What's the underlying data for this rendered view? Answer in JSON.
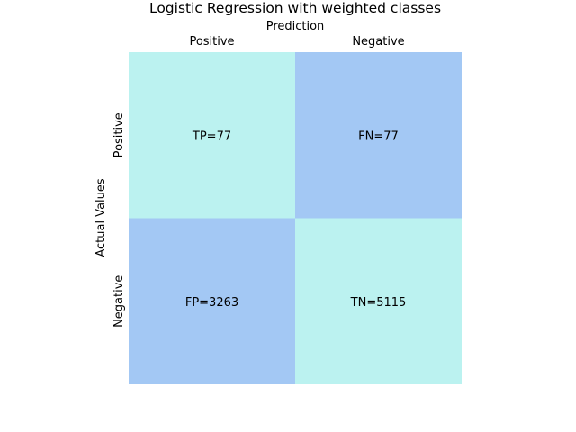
{
  "chart_data": {
    "type": "heatmap",
    "title": "Logistic Regression with weighted classes",
    "xlabel": "Prediction",
    "ylabel": "Actual Values",
    "x_categories": [
      "Positive",
      "Negative"
    ],
    "y_categories": [
      "Positive",
      "Negative"
    ],
    "cells": [
      {
        "row": 0,
        "col": 0,
        "label": "TP=77",
        "value": 77,
        "color": "#bbf2f0"
      },
      {
        "row": 0,
        "col": 1,
        "label": "FN=77",
        "value": 77,
        "color": "#a3c8f4"
      },
      {
        "row": 1,
        "col": 0,
        "label": "FP=3263",
        "value": 3263,
        "color": "#a3c8f4"
      },
      {
        "row": 1,
        "col": 1,
        "label": "TN=5115",
        "value": 5115,
        "color": "#bbf2f0"
      }
    ],
    "x_tick_position": "top",
    "colorbar": false,
    "grid": false
  }
}
